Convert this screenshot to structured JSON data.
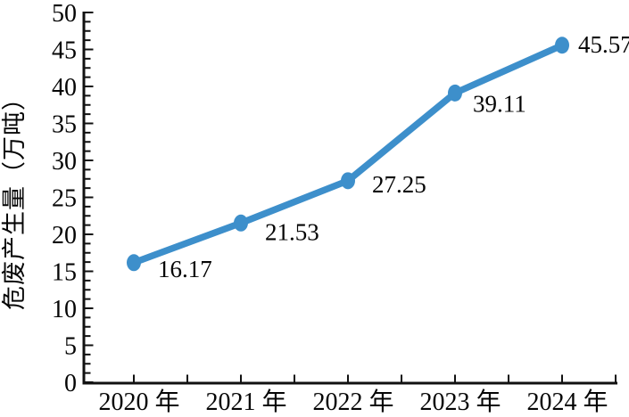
{
  "figure": {
    "background": "#ffffff"
  },
  "chart_data": {
    "type": "line",
    "title": "",
    "categories": [
      "2020 年",
      "2021 年",
      "2022 年",
      "2023 年",
      "2024 年"
    ],
    "values": [
      16.17,
      21.53,
      27.25,
      39.11,
      45.57
    ],
    "point_labels": [
      "16.17",
      "21.53",
      "27.25",
      "39.11",
      "45.57"
    ],
    "series_name": "危废产生量",
    "xlabel": "",
    "ylabel": "危废产生量（万吨）",
    "ylim": [
      0,
      50
    ],
    "y_major_step": 5,
    "y_minor_step": 1.25,
    "y_tick_labels": [
      "0",
      "5",
      "10",
      "15",
      "20",
      "25",
      "30",
      "35",
      "40",
      "45",
      "50"
    ],
    "grid": false,
    "legend": null,
    "marker": "ellipse",
    "colors": {
      "line": "#3D8FCB",
      "marker": "#3D8FCB",
      "axis": "#111111",
      "text": "#050505"
    },
    "label_offsets": {
      "dx": [
        27,
        27,
        27,
        20,
        18
      ],
      "dy": [
        6,
        9,
        3,
        11,
        -2
      ]
    }
  }
}
